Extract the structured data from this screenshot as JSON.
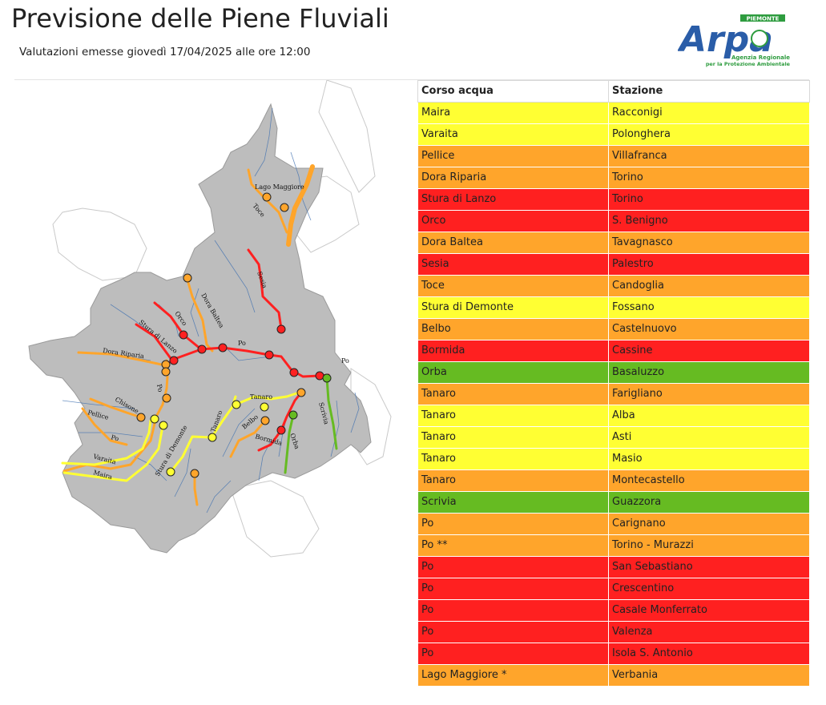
{
  "header": {
    "title": "Previsione delle Piene Fluviali",
    "subtitle": "Valutazioni emesse giovedì 17/04/2025 alle ore 12:00"
  },
  "logo": {
    "text": "Arpa",
    "region": "PIEMONTE",
    "line1": "Agenzia Regionale",
    "line2": "per la Protezione Ambientale",
    "brand_color": "#2a5da8"
  },
  "level_colors": {
    "yellow": "#ffff33",
    "orange": "#ffa52b",
    "red": "#ff2020",
    "green": "#66bb22"
  },
  "map": {
    "fill_color": "#bdbdbd",
    "river_color": "#3d6fb0",
    "labels": [
      "Lago Maggiore",
      "Toce",
      "Sesia",
      "Dora Baltea",
      "Orco",
      "Stura di Lanzo",
      "Dora Riparia",
      "Po",
      "Po",
      "Chisone",
      "Pellice",
      "Po",
      "Varaita",
      "Maira",
      "Stura di Demonte",
      "Tanaro",
      "Tanaro",
      "Belbo",
      "Bormida",
      "Orba",
      "Scrivia",
      "Po"
    ]
  },
  "table": {
    "headers": [
      "Corso acqua",
      "Stazione"
    ],
    "rows": [
      {
        "river": "Maira",
        "station": "Racconigi",
        "level": "yellow"
      },
      {
        "river": "Varaita",
        "station": "Polonghera",
        "level": "yellow"
      },
      {
        "river": "Pellice",
        "station": "Villafranca",
        "level": "orange"
      },
      {
        "river": "Dora Riparia",
        "station": "Torino",
        "level": "orange"
      },
      {
        "river": "Stura di Lanzo",
        "station": "Torino",
        "level": "red"
      },
      {
        "river": "Orco",
        "station": "S. Benigno",
        "level": "red"
      },
      {
        "river": "Dora Baltea",
        "station": "Tavagnasco",
        "level": "orange"
      },
      {
        "river": "Sesia",
        "station": "Palestro",
        "level": "red"
      },
      {
        "river": "Toce",
        "station": "Candoglia",
        "level": "orange"
      },
      {
        "river": "Stura di Demonte",
        "station": "Fossano",
        "level": "yellow"
      },
      {
        "river": "Belbo",
        "station": "Castelnuovo",
        "level": "orange"
      },
      {
        "river": "Bormida",
        "station": "Cassine",
        "level": "red"
      },
      {
        "river": "Orba",
        "station": "Basaluzzo",
        "level": "green"
      },
      {
        "river": "Tanaro",
        "station": "Farigliano",
        "level": "orange"
      },
      {
        "river": "Tanaro",
        "station": "Alba",
        "level": "yellow"
      },
      {
        "river": "Tanaro",
        "station": "Asti",
        "level": "yellow"
      },
      {
        "river": "Tanaro",
        "station": "Masio",
        "level": "yellow"
      },
      {
        "river": "Tanaro",
        "station": "Montecastello",
        "level": "orange"
      },
      {
        "river": "Scrivia",
        "station": "Guazzora",
        "level": "green"
      },
      {
        "river": "Po",
        "station": "Carignano",
        "level": "orange"
      },
      {
        "river": "Po **",
        "station": "Torino - Murazzi",
        "level": "orange"
      },
      {
        "river": "Po",
        "station": "San Sebastiano",
        "level": "red"
      },
      {
        "river": "Po",
        "station": "Crescentino",
        "level": "red"
      },
      {
        "river": "Po",
        "station": "Casale Monferrato",
        "level": "red"
      },
      {
        "river": "Po",
        "station": "Valenza",
        "level": "red"
      },
      {
        "river": "Po",
        "station": "Isola S. Antonio",
        "level": "red"
      },
      {
        "river": "Lago Maggiore *",
        "station": "Verbania",
        "level": "orange"
      }
    ]
  }
}
